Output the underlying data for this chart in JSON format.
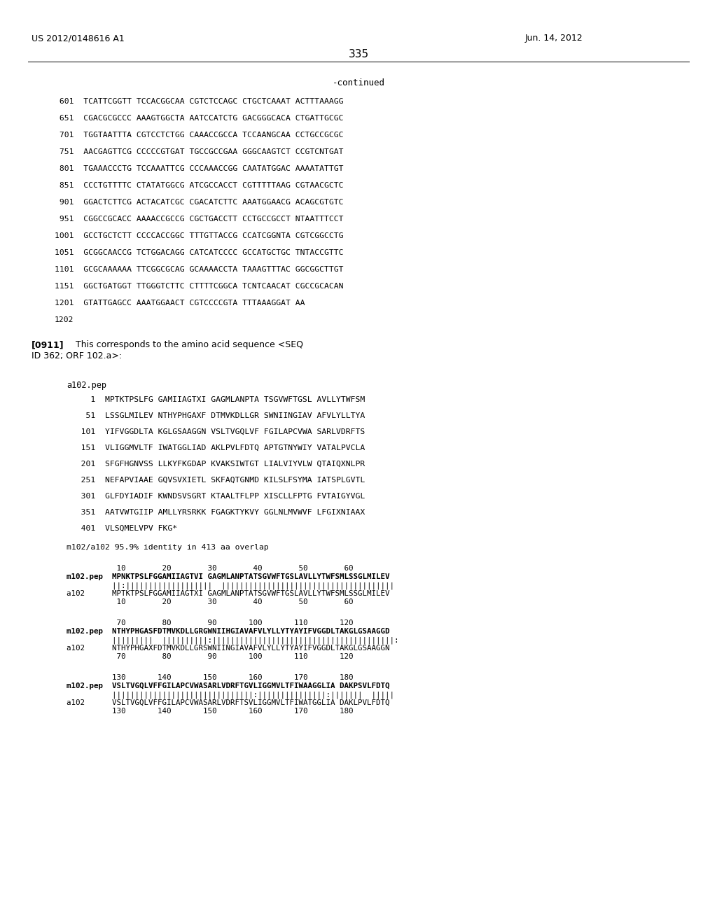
{
  "background_color": "#ffffff",
  "header_left": "US 2012/0148616 A1",
  "header_right": "Jun. 14, 2012",
  "page_number": "335",
  "continued_label": "-continued",
  "dna_lines": [
    " 601  TCATTCGGTT TCCACGGCAA CGTCTCCAGC CTGCTCAAAT ACTTTAAAGG",
    " 651  CGACGCGCCC AAAGTGGCTA AATCCATCTG GACGGGCACA CTGATTGCGC",
    " 701  TGGTAATTTA CGTCCTCTGG CAAACCGCCA TCCAANGCAA CCTGCCGCGC",
    " 751  AACGAGTTCG CCCCCGTGAT TGCCGCCGAA GGGCAAGTCT CCGTCNTGAT",
    " 801  TGAAACCCTG TCCAAATTCG CCCAAACCGG CAATATGGAC AAAATATTGT",
    " 851  CCCTGTTTTC CTATATGGCG ATCGCCACCT CGTTTTTAAG CGTAACGCTC",
    " 901  GGACTCTTCG ACTACATCGC CGACATCTTC AAATGGAACG ACAGCGTGTC",
    " 951  CGGCCGCACC AAAACCGCCG CGCTGACCTT CCTGCCGCCT NTAATTTCCT",
    "1001  GCCTGCTCTT CCCCACCGGC TTTGTTACCG CCATCGGNTA CGTCGGCCTG",
    "1051  GCGGCAACCG TCTGGACAGG CATCATCCCC GCCATGCTGC TNTACCGTTC",
    "1101  GCGCAAAAAA TTCGGCGCAG GCAAAACCTA TAAAGTTTAC GGCGGCTTGT",
    "1151  GGCTGATGGT TTGGGTCTTC CTTTTCGGCA TCNTCAACAT CGCCGCACAN",
    "1201  GTATTGAGCC AAATGGAACT CGTCCCCGTA TTTAAAGGAT AA",
    "1202"
  ],
  "paragraph_bold": "[0911]",
  "paragraph_rest1": "  This corresponds to the amino acid sequence <SEQ",
  "paragraph_rest2": "ID 362; ORF 102.a>:",
  "peptide_label": "a102.pep",
  "peptide_lines": [
    "     1  MPTKTPSLFG GAMIIAGTXI GAGMLANPTA TSGVWFTGSL AVLLYTWFSM",
    "    51  LSSGLMILEV NTHYPHGAXF DTMVKDLLGR SWNIINGIAV AFVLYLLTYA",
    "   101  YIFVGGDLTA KGLGSAAGGN VSLTVGQLVF FGILAPCVWA SARLVDRFTS",
    "   151  VLIGGMVLTF IWATGGLIAD AKLPVLFDTQ APTGTNYWIY VATALPVCLA",
    "   201  SFGFHGNVSS LLKYFKGDAP KVAKSIWTGT LIALVIYVLW QTAIQXNLPR",
    "   251  NEFAPVIAAE GQVSVXIETL SKFAQTGNMD KILSLFSYMA IATSPLGVTL",
    "   301  GLFDYIADIF KWNDSVSGRT KTAALTFLPP XISCLLFPTG FVTAIGYVGL",
    "   351  AATVWTGIIP AMLLYRSRKK FGAGKTYKVY GGLNLMVWVF LFGIXNIAAX",
    "   401  VLSQMELVPV FKG*"
  ],
  "identity_line": "m102/a102 95.9% identity in 413 aa overlap",
  "align_block1_ruler1": "           10        20        30        40        50        60",
  "align_block1_m102": "m102.pep  MPNKTPSLFGGAMIIAGTVI GAGMLANPTATSGVWFTGSLAVLLYTWFSMLSSGLMILEV",
  "align_block1_match": "          ||:|||||||||||||||||||  ||||||||||||||||||||||||||||||||||||||",
  "align_block1_a102": "a102      MPTKTPSLFGGAMIIAGTXI GAGMLANPTATSGVWFTGSLAVLLYTWFSMLSSGLMILEV",
  "align_block1_ruler2": "           10        20        30        40        50        60",
  "align_block2_ruler1": "           70        80        90       100       110       120",
  "align_block2_m102": "m102.pep  NTHYPHGASFDTMVKDLLGRGWNIIНGIAVAFVLYLLYTYAYIFVGGDLTAKGLGSAAGGD",
  "align_block2_match": "          |||||||||  ||||||||||:||||||||||||||||||||||||||||||||||||||||:",
  "align_block2_a102": "a102      NTHYPHGAXFDTMVKDLLGRSWNIINGIAVAFVLYLLYTYAYIFVGGDLTAKGLGSAAGGN",
  "align_block2_ruler2": "           70        80        90       100       110       120",
  "align_block3_ruler1": "          130       140       150       160       170       180",
  "align_block3_m102": "m102.pep  VSLTVGQLVFFGILAPCVWASARLVDRFTGVLIGGMVLTFIWAAGGLIA DAKPSVLFDTQ",
  "align_block3_match": "          |||||||||||||||||||||||||||||||:|||||||||||||||:|||||||  |||||",
  "align_block3_a102": "a102      VSLTVGQLVFFGILAPCVWASARLVDRFTSVLIGGMVLTFIWATGGLIA DAKLPVLFDTQ",
  "align_block3_ruler2": "          130       140       150       160       170       180"
}
